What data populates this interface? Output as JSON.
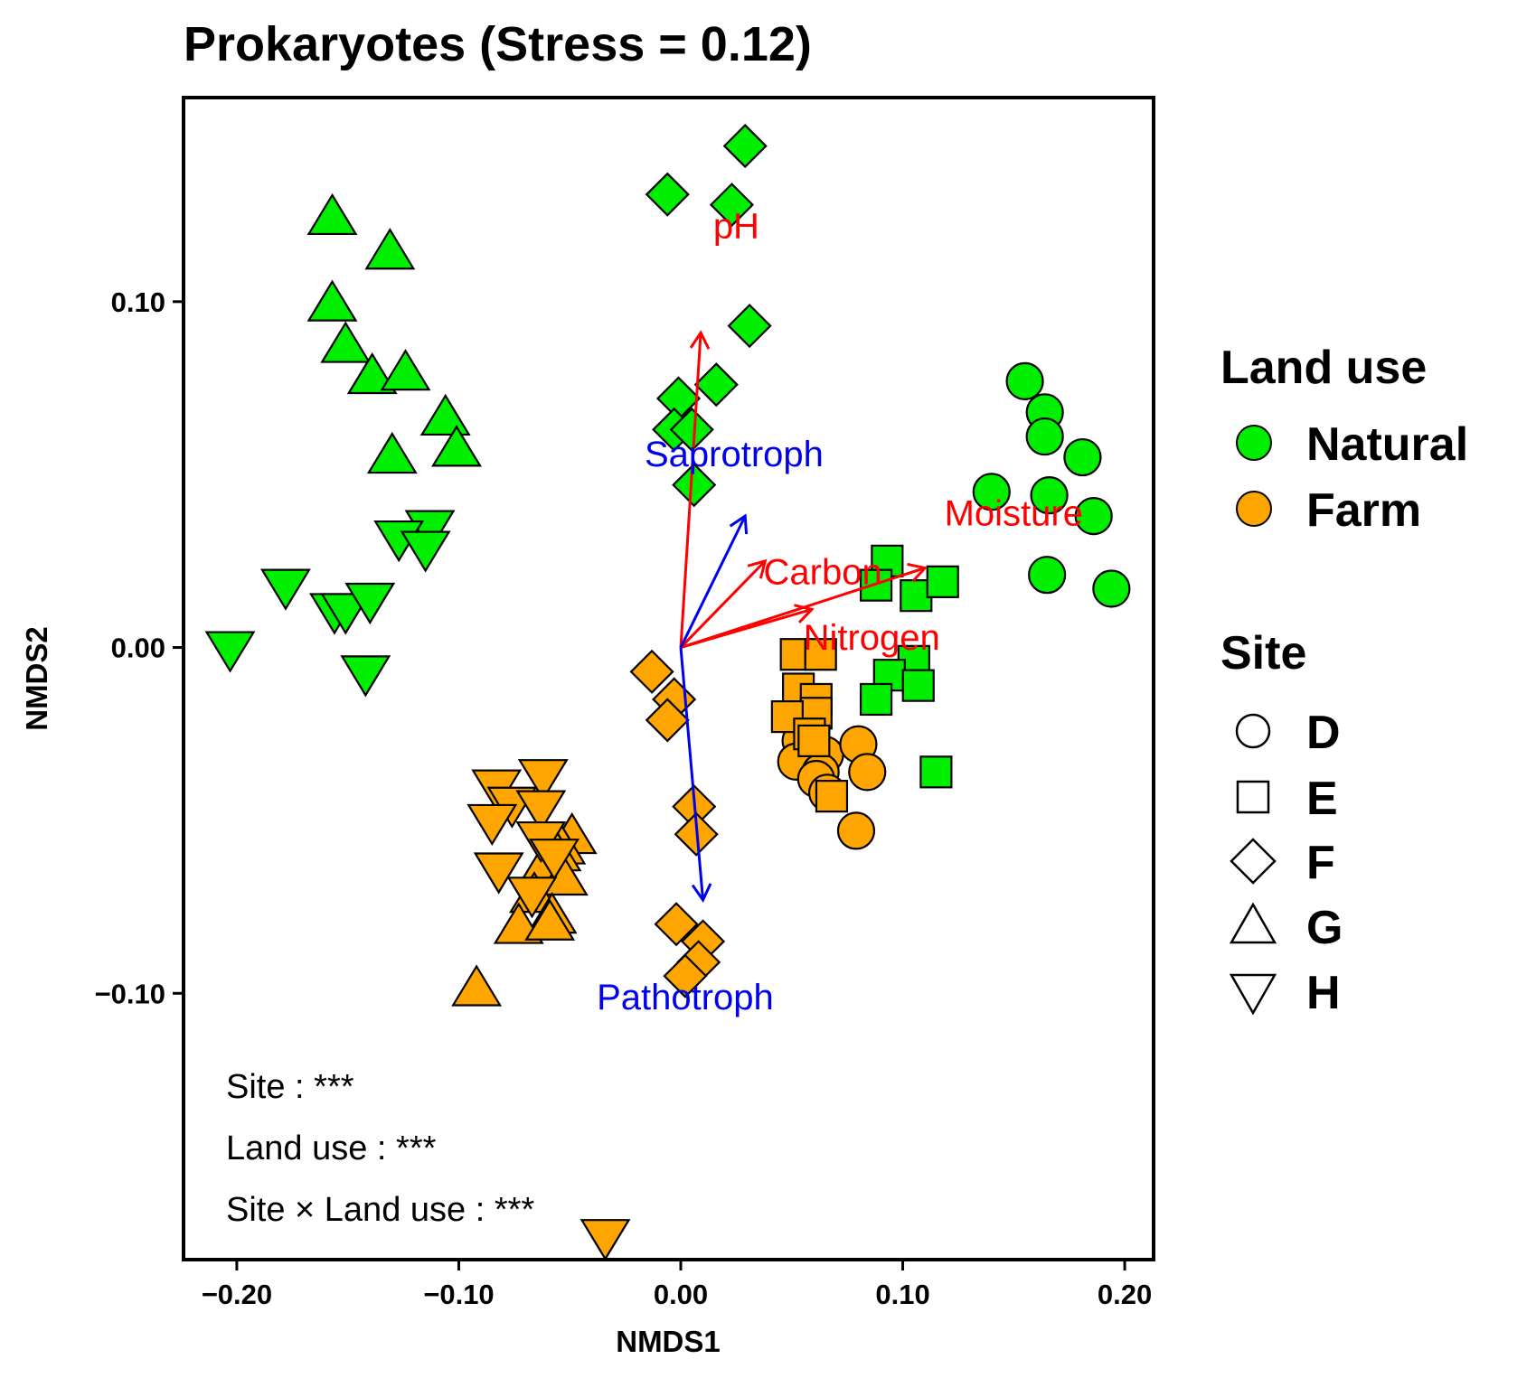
{
  "chart_data": {
    "type": "scatter",
    "title": "Prokaryotes (Stress = 0.12)",
    "xlabel": "NMDS1",
    "ylabel": "NMDS2",
    "xlim": [
      -0.224,
      0.213
    ],
    "ylim": [
      -0.177,
      0.159
    ],
    "xticks": [
      -0.2,
      -0.1,
      0.0,
      0.1,
      0.2
    ],
    "xtick_labels": [
      "−0.20",
      "−0.10",
      "0.00",
      "0.10",
      "0.20"
    ],
    "yticks": [
      -0.1,
      0.0,
      0.1
    ],
    "ytick_labels": [
      "−0.10",
      "0.00",
      "0.10"
    ],
    "grid": false,
    "legend_position": "right",
    "colors": {
      "Natural": "#00ee00",
      "Farm": "#ffa500",
      "env_vector": "#ff0000",
      "guild_vector": "#0000ee"
    },
    "legend": {
      "land_use": {
        "title": "Land use",
        "entries": [
          {
            "label": "Natural",
            "color": "#00ee00"
          },
          {
            "label": "Farm",
            "color": "#ffa500"
          }
        ]
      },
      "site": {
        "title": "Site",
        "entries": [
          {
            "label": "D",
            "shape": "circle"
          },
          {
            "label": "E",
            "shape": "square"
          },
          {
            "label": "F",
            "shape": "diamond"
          },
          {
            "label": "G",
            "shape": "triangle-up"
          },
          {
            "label": "H",
            "shape": "triangle-down"
          }
        ]
      }
    },
    "vectors": [
      {
        "label": "pH",
        "x": 0.009,
        "y": 0.091,
        "color": "#ff0000",
        "label_x": 0.025,
        "label_y": 0.122
      },
      {
        "label": "Moisture",
        "x": 0.11,
        "y": 0.023,
        "color": "#ff0000",
        "label_x": 0.15,
        "label_y": 0.039
      },
      {
        "label": "Carbon",
        "x": 0.038,
        "y": 0.025,
        "color": "#ff0000",
        "label_x": 0.064,
        "label_y": 0.022
      },
      {
        "label": "Nitrogen",
        "x": 0.059,
        "y": 0.011,
        "color": "#ff0000",
        "label_x": 0.086,
        "label_y": 0.003
      },
      {
        "label": "Saprotroph",
        "x": 0.029,
        "y": 0.038,
        "color": "#0000ee",
        "label_x": 0.024,
        "label_y": 0.056
      },
      {
        "label": "Pathotroph",
        "x": 0.01,
        "y": -0.073,
        "color": "#0000ee",
        "label_x": 0.002,
        "label_y": -0.101
      }
    ],
    "annotations": [
      "Site : ***",
      "Land use : ***",
      "Site × Land use : ***"
    ],
    "series": [
      {
        "land_use": "Natural",
        "site": "D",
        "x": [
          0.155,
          0.164,
          0.164,
          0.166,
          0.14,
          0.181,
          0.186,
          0.165,
          0.194
        ],
        "y": [
          0.077,
          0.068,
          0.061,
          0.044,
          0.045,
          0.055,
          0.038,
          0.021,
          0.017
        ]
      },
      {
        "land_use": "Natural",
        "site": "E",
        "x": [
          0.093,
          0.088,
          0.106,
          0.118,
          0.105,
          0.094,
          0.107,
          0.088,
          0.115
        ],
        "y": [
          0.025,
          0.018,
          0.015,
          0.019,
          -0.004,
          -0.008,
          -0.011,
          -0.015,
          -0.036
        ]
      },
      {
        "land_use": "Natural",
        "site": "F",
        "x": [
          0.029,
          -0.006,
          0.023,
          0.031,
          0.016,
          -0.001,
          -0.003,
          0.005,
          0.006
        ],
        "y": [
          0.145,
          0.131,
          0.128,
          0.093,
          0.076,
          0.072,
          0.063,
          0.063,
          0.047
        ]
      },
      {
        "land_use": "Natural",
        "site": "G",
        "x": [
          -0.157,
          -0.131,
          -0.157,
          -0.151,
          -0.139,
          -0.124,
          -0.106,
          -0.13,
          -0.101
        ],
        "y": [
          0.124,
          0.114,
          0.099,
          0.087,
          0.078,
          0.079,
          0.066,
          0.055,
          0.057
        ]
      },
      {
        "land_use": "Natural",
        "site": "H",
        "x": [
          -0.113,
          -0.127,
          -0.115,
          -0.178,
          -0.156,
          -0.151,
          -0.14,
          -0.203,
          -0.142
        ],
        "y": [
          0.035,
          0.032,
          0.029,
          0.018,
          0.011,
          0.011,
          0.014,
          0.0,
          -0.007
        ]
      },
      {
        "land_use": "Farm",
        "site": "D",
        "x": [
          0.054,
          0.065,
          0.052,
          0.063,
          0.08,
          0.061,
          0.084,
          0.066,
          0.079
        ],
        "y": [
          -0.027,
          -0.031,
          -0.033,
          -0.036,
          -0.028,
          -0.038,
          -0.036,
          -0.042,
          -0.053
        ]
      },
      {
        "land_use": "Farm",
        "site": "E",
        "x": [
          0.052,
          0.063,
          0.053,
          0.061,
          0.061,
          0.048,
          0.058,
          0.06,
          0.068
        ],
        "y": [
          -0.002,
          -0.002,
          -0.012,
          -0.015,
          -0.019,
          -0.02,
          -0.025,
          -0.027,
          -0.043
        ]
      },
      {
        "land_use": "Farm",
        "site": "F",
        "x": [
          -0.013,
          -0.003,
          -0.006,
          0.006,
          0.007,
          -0.002,
          0.01,
          0.008,
          0.002
        ],
        "y": [
          -0.007,
          -0.015,
          -0.021,
          -0.046,
          -0.054,
          -0.08,
          -0.085,
          -0.091,
          -0.095
        ]
      },
      {
        "land_use": "Farm",
        "site": "G",
        "x": [
          -0.049,
          -0.054,
          -0.056,
          -0.063,
          -0.053,
          -0.066,
          -0.058,
          -0.073,
          -0.059,
          -0.092
        ],
        "y": [
          -0.055,
          -0.058,
          -0.06,
          -0.065,
          -0.067,
          -0.072,
          -0.078,
          -0.081,
          -0.08,
          -0.099
        ]
      },
      {
        "land_use": "Farm",
        "site": "H",
        "x": [
          -0.062,
          -0.083,
          -0.076,
          -0.063,
          -0.085,
          -0.063,
          -0.082,
          -0.057,
          -0.067,
          -0.034
        ],
        "y": [
          -0.037,
          -0.04,
          -0.045,
          -0.046,
          -0.05,
          -0.055,
          -0.064,
          -0.06,
          -0.071,
          -0.17
        ]
      }
    ]
  }
}
